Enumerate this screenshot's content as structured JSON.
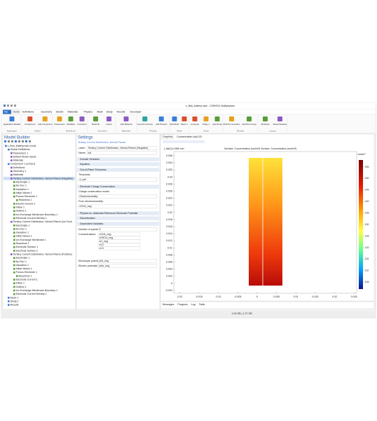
{
  "window": {
    "title": "c_flow_battery.mph - COMSOL Multiphysics"
  },
  "tabs": [
    "File",
    "Home",
    "Definitions",
    "Geometry",
    "Sketch",
    "Materials",
    "Physics",
    "Mesh",
    "Study",
    "Results",
    "Developer"
  ],
  "ribbon": [
    {
      "label": "Application",
      "buttons": [
        "Application Builder"
      ]
    },
    {
      "label": "Model",
      "buttons": [
        "Component",
        "Add Component"
      ]
    },
    {
      "label": "Definitions",
      "buttons": [
        "Parameters",
        "Variables",
        "Functions"
      ]
    },
    {
      "label": "Geometry",
      "buttons": [
        "Build All",
        "Import"
      ]
    },
    {
      "label": "Materials",
      "buttons": [
        "Add Material"
      ]
    },
    {
      "label": "Physics",
      "buttons": [
        "Tertiary Current Distribution, Nernst-Planck (Negative)",
        "Add Physics"
      ]
    },
    {
      "label": "Mesh",
      "buttons": [
        "Build Mesh",
        "Mesh 1"
      ]
    },
    {
      "label": "Study",
      "buttons": [
        "Compute",
        "Study 1",
        "Add Study"
      ]
    },
    {
      "label": "Results",
      "buttons": [
        "2D/3D Plot Concentration",
        "Add Plot Group"
      ]
    },
    {
      "label": "Layout",
      "buttons": [
        "Windows",
        "Reset Desktop"
      ]
    }
  ],
  "model_builder": {
    "title": "Model Builder",
    "tree": [
      [
        "c_flow_battery.mph (root)",
        0
      ],
      [
        "Global Definitions",
        1
      ],
      [
        "Parameters 1",
        2
      ],
      [
        "Default Model Inputs",
        2
      ],
      [
        "Materials",
        2
      ],
      [
        "Component 1 (comp1)",
        1
      ],
      [
        "Definitions",
        2
      ],
      [
        "Geometry 1",
        2
      ],
      [
        "Materials",
        2
      ],
      [
        "Tertiary Current Distribution, Nernst-Planck (Negative)",
        2
      ],
      [
        "Electrolyte 1",
        3
      ],
      [
        "No Flux 1",
        3
      ],
      [
        "Insulation 1",
        3
      ],
      [
        "Initial Values 1",
        3
      ],
      [
        "Porous Electrode 1",
        3
      ],
      [
        "Reactions 1",
        4
      ],
      [
        "Electric Ground 1",
        3
      ],
      [
        "Inflow 1",
        3
      ],
      [
        "Outflow 1",
        3
      ],
      [
        "Ion Exchange Membrane Boundary 1",
        3
      ],
      [
        "Electrode Current Density 1",
        3
      ],
      [
        "Tertiary Current Distribution, Nernst-Planck (Ion Exch",
        2
      ],
      [
        "Electrolyte 1",
        3
      ],
      [
        "No Flux 1",
        3
      ],
      [
        "Insulation 1",
        3
      ],
      [
        "Initial Values 1",
        3
      ],
      [
        "Ion Exchange Membrane 1",
        3
      ],
      [
        "Reactions 1",
        3
      ],
      [
        "Electrode Surface 1",
        3
      ],
      [
        "Electrode Surface 2",
        3
      ],
      [
        "Tertiary Current Distribution, Nernst-Planck (Positive)",
        2
      ],
      [
        "Electrolyte 1",
        3
      ],
      [
        "No Flux 1",
        3
      ],
      [
        "Insulation 1",
        3
      ],
      [
        "Initial Values 1",
        3
      ],
      [
        "Porous Electrode 1",
        3
      ],
      [
        "Reactions 1",
        4
      ],
      [
        "Electrode Current 1",
        3
      ],
      [
        "Inflow 1",
        3
      ],
      [
        "Outflow 1",
        3
      ],
      [
        "Ion Exchange Membrane Boundary 1",
        3
      ],
      [
        "Electrode Current Density 1",
        3
      ],
      [
        "Mesh 1",
        1
      ],
      [
        "Study 1",
        1
      ],
      [
        "Results",
        1
      ]
    ]
  },
  "settings": {
    "title": "Settings",
    "subtitle": "Tertiary Current Distribution, Nernst-Planck",
    "rows": [
      [
        "Label:",
        "Tertiary Current Distribution, Nernst-Planck (Negative)"
      ],
      [
        "Name:",
        "tcd"
      ],
      [
        "Domain Selection"
      ],
      [
        "Equation"
      ],
      [
        "Out-of-Plane Thickness"
      ],
      [
        "Thickness:"
      ],
      [
        "d_cell"
      ],
      [
        "Electrode Charge Conservation"
      ],
      [
        "Charge conservation model"
      ],
      [
        "Electroneutrality"
      ],
      [
        "From electroneutrality:"
      ],
      [
        "cSO4_neg"
      ],
      [
        "Physics vs. Materials Reference Electrode Potential"
      ],
      [
        "Discretization"
      ],
      [
        "Dependent Variables"
      ],
      [
        "Number of species:",
        "5"
      ],
      [
        "Concentrations:",
        "cSO4_neg"
      ],
      [
        "cHSO4_neg"
      ],
      [
        "cH_neg"
      ],
      [
        "cV2"
      ],
      [
        "cV3"
      ],
      [
        "Electrolyte potential:",
        "phil_neg"
      ],
      [
        "Electric potential:",
        "phis_neg"
      ]
    ]
  },
  "graphics": {
    "tab": "Graphics",
    "plot_name": "Concentration (tcd) 2D",
    "time_label": "t_list(2)=1980 min",
    "title": "Surface: Concentration (mol/m³)  Surface: Concentration (mol/m³)",
    "xlim": [
      -0.0215,
      0.0257
    ],
    "xticks": [
      -0.02,
      -0.015,
      -0.01,
      -0.005,
      0,
      0.005,
      0.01,
      0.015,
      0.02,
      0.025
    ],
    "ylim": [
      -0.0028,
      0.0372
    ],
    "yticks": [
      0.036,
      0.034,
      0.032,
      0.03,
      0.028,
      0.026,
      0.024,
      0.022,
      0.02,
      0.018,
      0.016,
      0.014,
      0.012,
      0.01,
      0.008,
      0.006,
      0.004,
      0.002,
      0,
      -0.002
    ],
    "colorbar": {
      "unit": "mol/m³",
      "lim": [
        102,
        158
      ],
      "ticks": [
        155,
        150,
        145,
        140,
        135,
        130,
        125,
        120,
        115,
        110,
        105
      ]
    }
  },
  "bottom_tabs": [
    "Messages",
    "Progress",
    "Log",
    "Table"
  ],
  "status": "1.03 GB | 1.07 GB"
}
